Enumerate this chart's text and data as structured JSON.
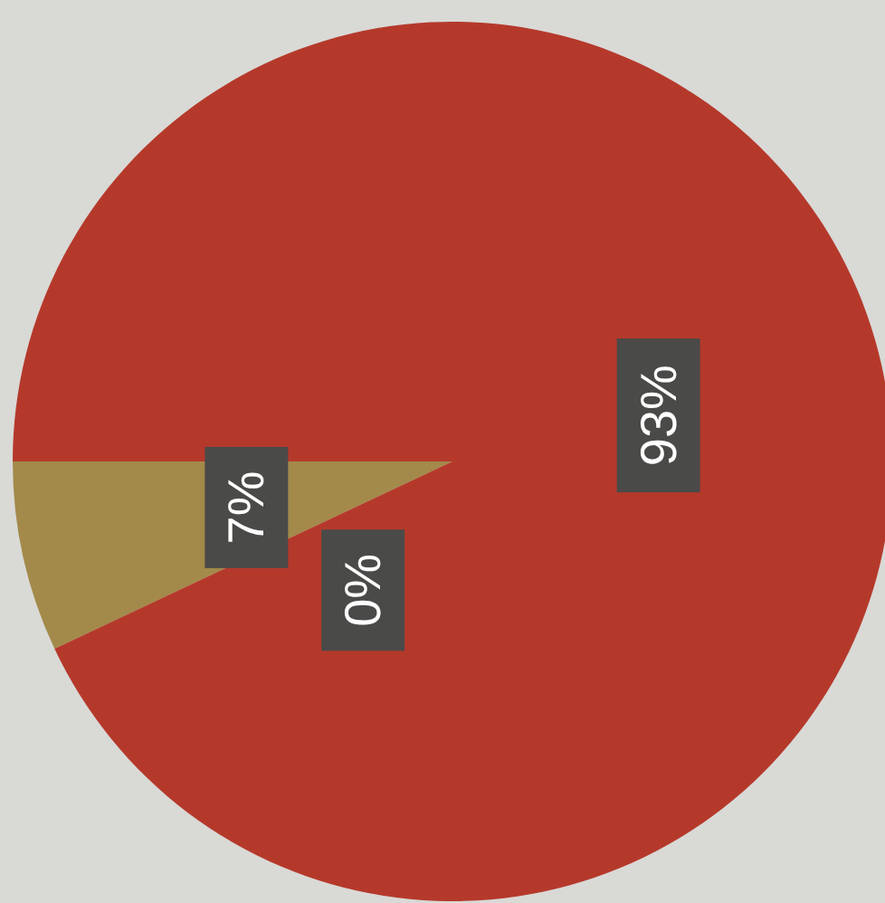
{
  "chart_data": {
    "type": "pie",
    "categories": [
      null,
      null,
      null
    ],
    "values": [
      7,
      0,
      93
    ],
    "colors": [
      "#a38a4a",
      "#7f7f7f",
      "#b5392b"
    ],
    "value_labels": [
      "7%",
      "0%",
      "93%"
    ]
  }
}
